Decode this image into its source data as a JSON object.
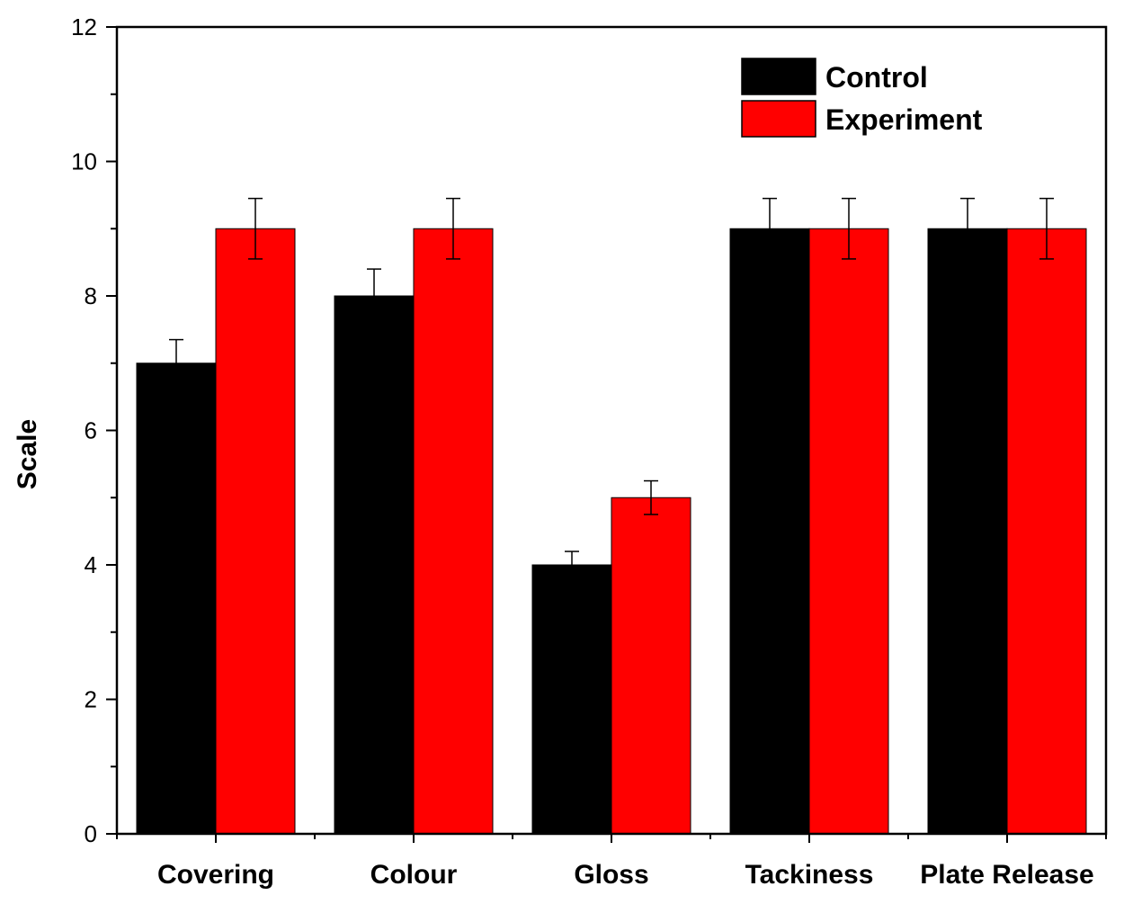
{
  "chart_data": {
    "type": "bar",
    "title": "",
    "xlabel": "",
    "ylabel": "Scale",
    "ylim": [
      0,
      12
    ],
    "yticks": [
      0,
      2,
      4,
      6,
      8,
      10,
      12
    ],
    "yticks_minor_step": 1,
    "grid": false,
    "legend_position": "top-right",
    "categories": [
      "Covering",
      "Colour",
      "Gloss",
      "Tackiness",
      "Plate Release"
    ],
    "series": [
      {
        "name": "Control",
        "color": "#000000",
        "values": [
          7,
          8,
          4,
          9,
          9
        ],
        "errors": [
          0.35,
          0.4,
          0.2,
          0.45,
          0.45
        ]
      },
      {
        "name": "Experiment",
        "color": "#ff0000",
        "values": [
          9,
          9,
          5,
          9,
          9
        ],
        "errors": [
          0.45,
          0.45,
          0.25,
          0.45,
          0.45
        ]
      }
    ]
  }
}
